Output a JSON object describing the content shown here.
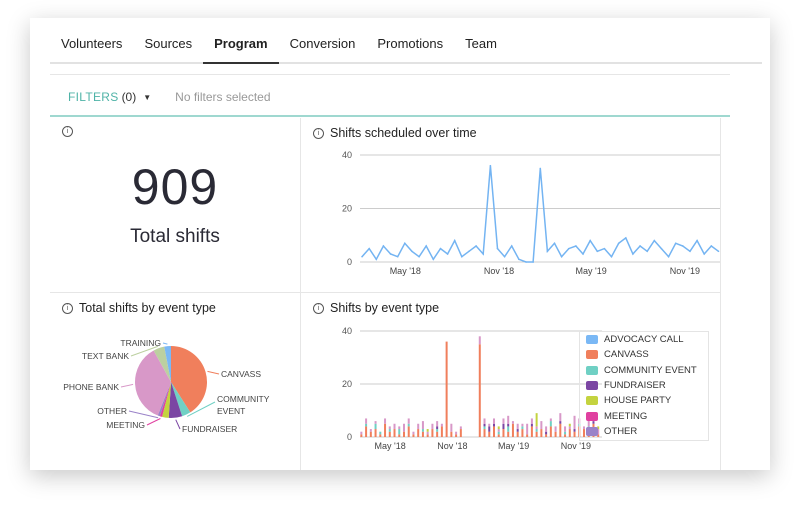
{
  "tabs": [
    {
      "label": "Volunteers"
    },
    {
      "label": "Sources"
    },
    {
      "label": "Program",
      "active": true
    },
    {
      "label": "Conversion"
    },
    {
      "label": "Promotions"
    },
    {
      "label": "Team"
    }
  ],
  "filters": {
    "label": "FILTERS",
    "count": "(0)",
    "status": "No filters selected"
  },
  "total": {
    "value": "909",
    "label": "Total shifts"
  },
  "colors": {
    "accent": "#4fb3a7",
    "line": "#74b4f2"
  },
  "line_chart": {
    "title": "Shifts scheduled over time"
  },
  "pie_chart": {
    "title": "Total shifts by event type"
  },
  "bar_chart": {
    "title": "Shifts by event type",
    "legend": [
      {
        "label": "ADVOCACY CALL",
        "color": "#7ab8f5"
      },
      {
        "label": "CANVASS",
        "color": "#f07f5c"
      },
      {
        "label": "COMMUNITY EVENT",
        "color": "#6fd0c4"
      },
      {
        "label": "FUNDRAISER",
        "color": "#7b46a3"
      },
      {
        "label": "HOUSE PARTY",
        "color": "#c4d33f"
      },
      {
        "label": "MEETING",
        "color": "#e040a0"
      },
      {
        "label": "OTHER",
        "color": "#9a82c8"
      }
    ]
  },
  "chart_data": [
    {
      "type": "line",
      "title": "Shifts scheduled over time",
      "ylim": [
        0,
        40
      ],
      "yticks": [
        "0",
        "20",
        "40"
      ],
      "xticks": [
        "May '18",
        "Nov '18",
        "May '19",
        "Nov '19"
      ],
      "grid": true,
      "x": [
        "2018-02-05",
        "2018-02-19",
        "2018-03-05",
        "2018-03-19",
        "2018-04-02",
        "2018-04-16",
        "2018-04-30",
        "2018-05-14",
        "2018-05-28",
        "2018-06-11",
        "2018-06-25",
        "2018-07-09",
        "2018-07-23",
        "2018-08-06",
        "2018-08-20",
        "2018-09-03",
        "2018-09-17",
        "2018-10-01",
        "2018-10-15",
        "2018-10-29",
        "2018-11-12",
        "2018-11-26",
        "2018-12-10",
        "2018-12-24",
        "2019-01-07",
        "2019-01-21",
        "2019-02-04",
        "2019-02-18",
        "2019-03-04",
        "2019-03-18",
        "2019-04-01",
        "2019-04-15",
        "2019-04-29",
        "2019-05-13",
        "2019-05-27",
        "2019-06-10",
        "2019-06-24",
        "2019-07-08",
        "2019-07-22",
        "2019-08-05",
        "2019-08-19",
        "2019-09-02",
        "2019-09-16",
        "2019-09-30",
        "2019-10-14",
        "2019-10-28",
        "2019-11-11",
        "2019-11-25",
        "2019-12-09",
        "2019-12-23",
        "2020-01-06"
      ],
      "values": [
        2,
        5,
        1,
        6,
        3,
        2,
        7,
        4,
        2,
        6,
        1,
        5,
        3,
        8,
        2,
        4,
        6,
        3,
        36,
        5,
        2,
        6,
        1,
        0,
        0,
        35,
        4,
        7,
        2,
        5,
        6,
        3,
        8,
        4,
        5,
        2,
        7,
        9,
        3,
        6,
        4,
        8,
        5,
        2,
        7,
        6,
        4,
        8,
        3,
        6,
        4
      ]
    },
    {
      "type": "pie",
      "title": "Total shifts by event type",
      "slices": [
        {
          "label": "CANVASS",
          "value": 41,
          "color": "#f07f5c"
        },
        {
          "label": "COMMUNITY EVENT",
          "value": 4,
          "color": "#6fd0c4"
        },
        {
          "label": "FUNDRAISER",
          "value": 6,
          "color": "#7b46a3"
        },
        {
          "label": "HOUSE PARTY",
          "value": 3,
          "color": "#c4d33f"
        },
        {
          "label": "MEETING",
          "value": 1,
          "color": "#e040a0"
        },
        {
          "label": "OTHER",
          "value": 1,
          "color": "#9a82c8"
        },
        {
          "label": "PHONE BANK",
          "value": 36,
          "color": "#d898c8"
        },
        {
          "label": "TEXT BANK",
          "value": 5,
          "color": "#bcd0a0"
        },
        {
          "label": "TRAINING",
          "value": 3,
          "color": "#7ab8f5"
        }
      ]
    },
    {
      "type": "bar",
      "stacked": true,
      "title": "Shifts by event type",
      "ylim": [
        0,
        40
      ],
      "yticks": [
        "0",
        "20",
        "40"
      ],
      "xticks": [
        "May '18",
        "Nov '18",
        "May '19",
        "Nov '19"
      ],
      "legend": "right",
      "series": [
        {
          "name": "CANVASS",
          "color": "#f07f5c",
          "values": [
            1,
            4,
            2,
            3,
            1,
            5,
            2,
            3,
            1,
            2,
            4,
            1,
            3,
            2,
            1,
            3,
            2,
            4,
            36,
            2,
            1,
            3,
            0,
            0,
            0,
            35,
            3,
            2,
            4,
            1,
            3,
            2,
            5,
            2,
            3,
            1,
            4,
            2,
            3,
            1,
            4,
            2,
            5,
            1,
            3,
            2,
            4,
            3,
            2,
            5,
            1
          ]
        },
        {
          "name": "COMMUNITY EVENT",
          "color": "#6fd0c4",
          "values": [
            0,
            1,
            0,
            2,
            1,
            0,
            1,
            0,
            2,
            0,
            1,
            0,
            0,
            1,
            0,
            0,
            1,
            0,
            0,
            0,
            0,
            0,
            0,
            0,
            0,
            0,
            1,
            0,
            0,
            1,
            0,
            2,
            0,
            0,
            1,
            0,
            0,
            1,
            0,
            0,
            2,
            0,
            0,
            1,
            0,
            0,
            1,
            0,
            2,
            0,
            0
          ]
        },
        {
          "name": "FUNDRAISER",
          "color": "#7b46a3",
          "values": [
            0,
            0,
            0,
            0,
            0,
            0,
            0,
            0,
            0,
            0,
            0,
            0,
            0,
            0,
            0,
            0,
            1,
            0,
            0,
            0,
            0,
            0,
            0,
            0,
            0,
            0,
            1,
            2,
            1,
            0,
            2,
            1,
            0,
            1,
            0,
            0,
            1,
            0,
            0,
            1,
            0,
            0,
            1,
            0,
            0,
            1,
            0,
            0,
            0,
            1,
            0
          ]
        },
        {
          "name": "PHONE BANK",
          "color": "#d898c8",
          "values": [
            1,
            2,
            1,
            1,
            0,
            2,
            1,
            2,
            1,
            3,
            2,
            1,
            2,
            3,
            1,
            2,
            2,
            1,
            0,
            3,
            1,
            1,
            0,
            0,
            0,
            3,
            2,
            1,
            2,
            1,
            2,
            3,
            1,
            2,
            1,
            4,
            2,
            1,
            3,
            2,
            1,
            2,
            3,
            2,
            1,
            5,
            2,
            1,
            3,
            2,
            2
          ]
        },
        {
          "name": "HOUSE PARTY",
          "color": "#c4d33f",
          "values": [
            0,
            0,
            0,
            0,
            0,
            0,
            0,
            0,
            0,
            0,
            0,
            0,
            0,
            0,
            1,
            0,
            0,
            0,
            0,
            0,
            0,
            0,
            0,
            0,
            0,
            0,
            0,
            0,
            0,
            1,
            0,
            0,
            0,
            0,
            0,
            0,
            0,
            5,
            0,
            0,
            0,
            0,
            0,
            0,
            1,
            0,
            0,
            0,
            0,
            0,
            1
          ]
        }
      ]
    }
  ]
}
